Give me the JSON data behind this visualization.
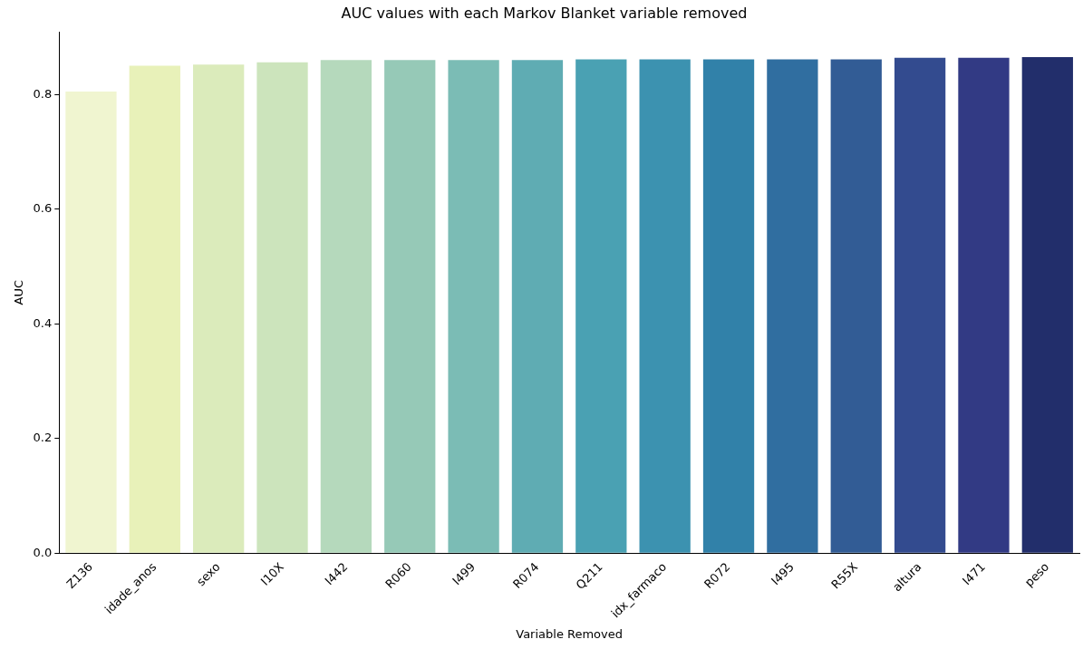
{
  "chart_data": {
    "type": "bar",
    "title": "AUC values with each Markov Blanket variable removed",
    "xlabel": "Variable Removed",
    "ylabel": "AUC",
    "categories": [
      "Z136",
      "idade_anos",
      "sexo",
      "I10X",
      "I442",
      "R060",
      "I499",
      "R074",
      "Q211",
      "idx_farmaco",
      "R072",
      "I495",
      "R55X",
      "altura",
      "I471",
      "peso"
    ],
    "values": [
      0.805,
      0.85,
      0.852,
      0.856,
      0.86,
      0.86,
      0.86,
      0.86,
      0.861,
      0.861,
      0.861,
      0.861,
      0.861,
      0.864,
      0.864,
      0.865
    ],
    "colors": [
      "#f0f5d0",
      "#e8f1b9",
      "#dbebbb",
      "#cce4bc",
      "#b5d9bc",
      "#96c9b7",
      "#7bbcb5",
      "#5facb3",
      "#4aa1b3",
      "#3c92b0",
      "#3181a9",
      "#306ea0",
      "#325c95",
      "#334b8f",
      "#323a84",
      "#222e6b"
    ],
    "ylim": [
      0,
      0.909
    ],
    "yticks": [
      {
        "value": 0,
        "label": "0.0"
      },
      0.2,
      0.4,
      0.6,
      0.8
    ],
    "grid": false,
    "legend": false
  }
}
